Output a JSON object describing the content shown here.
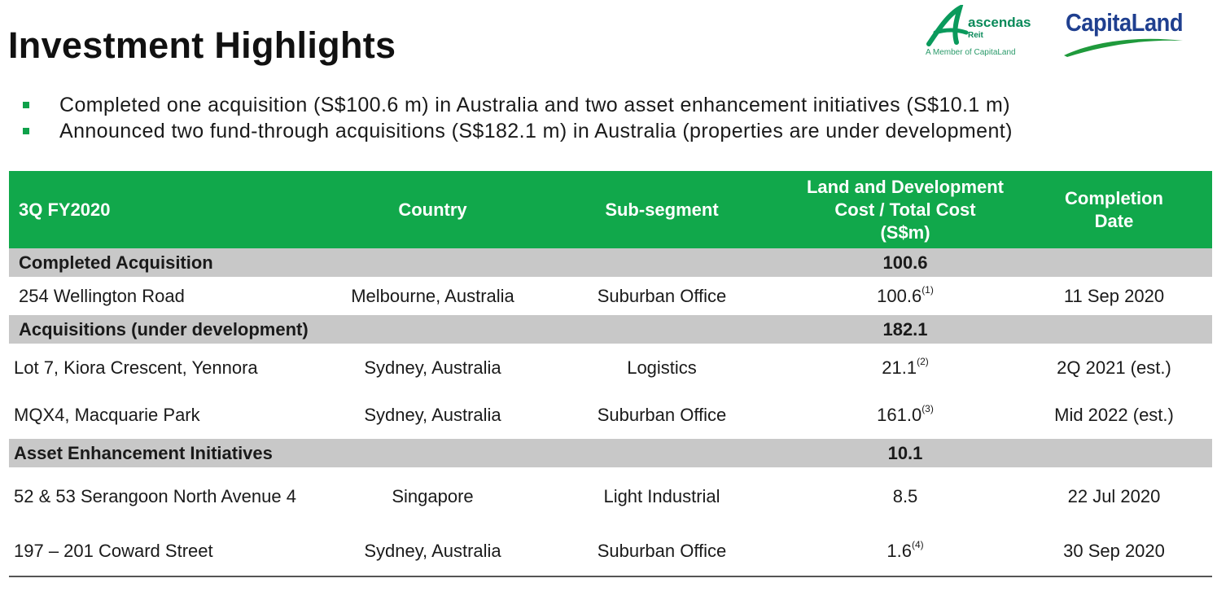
{
  "header": {
    "title": "Investment Highlights",
    "logo_ascendas": {
      "brand": "ascendas",
      "sub": "Reit",
      "tagline": "A Member of CapitaLand"
    },
    "logo_capitaland": {
      "brand": "CapitaLand"
    }
  },
  "bullets": [
    "Completed one acquisition (S$100.6 m) in Australia and two asset enhancement initiatives (S$10.1 m)",
    "Announced two fund-through acquisitions (S$182.1 m) in Australia (properties are under development)"
  ],
  "table": {
    "columns": {
      "period": "3Q FY2020",
      "country": "Country",
      "sub_segment": "Sub-segment",
      "cost_line1": "Land and Development",
      "cost_line2": "Cost / Total Cost",
      "cost_line3": "(S$m)",
      "date_line1": "Completion",
      "date_line2": "Date"
    },
    "sections": [
      {
        "label": "Completed Acquisition",
        "total": "100.6"
      },
      {
        "label": "Acquisitions (under development)",
        "total": "182.1"
      },
      {
        "label": "Asset Enhancement Initiatives",
        "total": "10.1"
      }
    ],
    "rows": [
      {
        "name": "254 Wellington Road",
        "country": "Melbourne, Australia",
        "segment": "Suburban Office",
        "cost": "100.6",
        "note": "(1)",
        "date": "11 Sep 2020"
      },
      {
        "name": "Lot 7, Kiora Crescent, Yennora",
        "country": "Sydney, Australia",
        "segment": "Logistics",
        "cost": "21.1",
        "note": "(2)",
        "date": "2Q 2021 (est.)"
      },
      {
        "name": "MQX4, Macquarie Park",
        "country": "Sydney, Australia",
        "segment": "Suburban Office",
        "cost": "161.0",
        "note": "(3)",
        "date": "Mid 2022 (est.)"
      },
      {
        "name": "52 & 53 Serangoon North Avenue 4",
        "country": "Singapore",
        "segment": "Light Industrial",
        "cost": "8.5",
        "note": "",
        "date": "22 Jul 2020"
      },
      {
        "name": "197 – 201 Coward Street",
        "country": "Sydney, Australia",
        "segment": "Suburban Office",
        "cost": "1.6",
        "note": "(4)",
        "date": "30 Sep 2020"
      }
    ]
  },
  "colors": {
    "accent_green": "#11a84b",
    "section_gray": "#c8c8c8",
    "capitaland_blue": "#1f3f8f"
  }
}
